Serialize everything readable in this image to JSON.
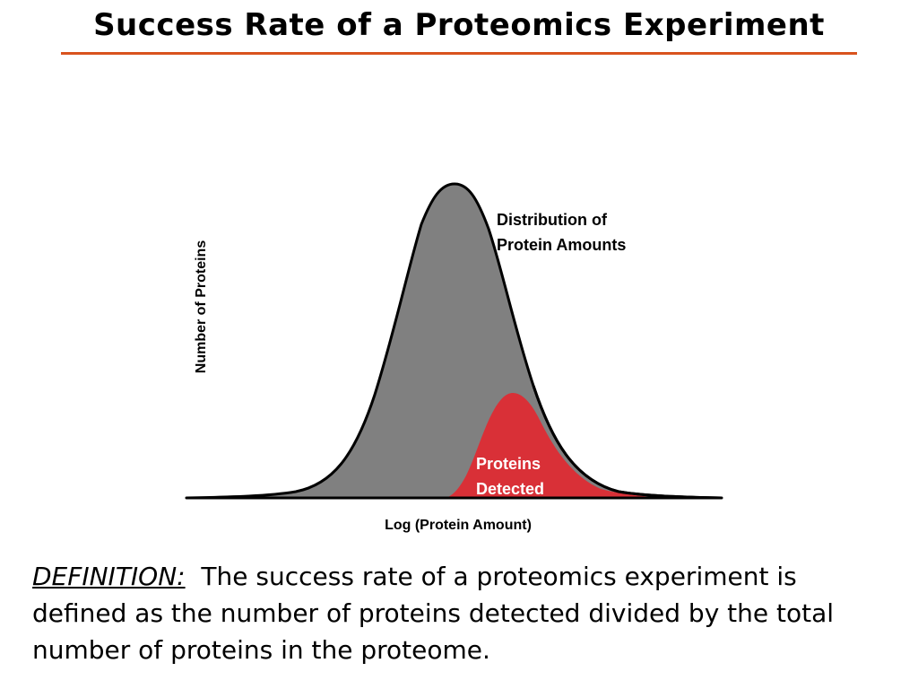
{
  "title": "Success Rate of a Proteomics Experiment",
  "colors": {
    "rule": "#d9531e",
    "distribution_fill": "#808080",
    "detected_fill": "#d93037",
    "outline": "#000000",
    "detected_label": "#ffffff"
  },
  "diagram": {
    "y_axis_label": "Number of Proteins",
    "x_axis_label": "Log (Protein Amount)",
    "distribution_label_line1": "Distribution of",
    "distribution_label_line2": "Protein Amounts",
    "detected_label_line1": "Proteins",
    "detected_label_line2": "Detected"
  },
  "definition": {
    "label": "DEFINITION:",
    "text": "The success rate of a proteomics experiment is defined as the number of proteins detected divided by the total number of proteins in the proteome."
  }
}
